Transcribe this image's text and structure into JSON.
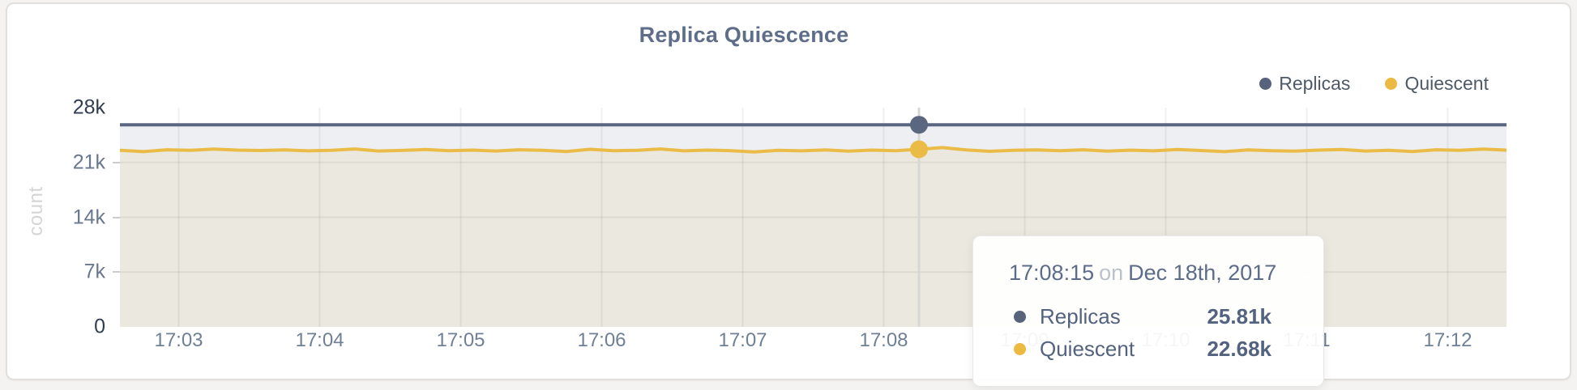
{
  "title": "Replica Quiescence",
  "y_axis_unit": "count",
  "legend": {
    "items": [
      {
        "label": "Replicas",
        "color": "#57637b"
      },
      {
        "label": "Quiescent",
        "color": "#ecba42"
      }
    ]
  },
  "tooltip": {
    "time": "17:08:15",
    "joiner": "on",
    "date": "Dec 18th, 2017",
    "rows": [
      {
        "label": "Replicas",
        "value": "25.81k",
        "color": "#57637b"
      },
      {
        "label": "Quiescent",
        "value": "22.68k",
        "color": "#ecba42"
      }
    ]
  },
  "colors": {
    "replicas_line": "#5b6780",
    "replicas_fill": "#edeff3",
    "quiescent_line": "#eabc47",
    "quiescent_fill": "#ebe8df",
    "crosshair": "#d7d7d5",
    "grid": "rgba(70,70,55,0.08)"
  },
  "chart_data": {
    "type": "area",
    "title": "Replica Quiescence",
    "xlabel": "",
    "ylabel": "count",
    "ylim": [
      0,
      28000
    ],
    "y_tick_values": [
      0,
      7000,
      14000,
      21000,
      28000
    ],
    "y_tick_labels": [
      "0",
      "7k",
      "14k",
      "21k",
      "28k"
    ],
    "x_start": "17:02:35",
    "x_end": "17:12:25",
    "x_step_seconds": 10,
    "x_tick_labels": [
      "17:03",
      "17:04",
      "17:05",
      "17:06",
      "17:07",
      "17:08",
      "17:09",
      "17:10",
      "17:11",
      "17:12"
    ],
    "legend_position": "top-right",
    "grid": true,
    "hover": {
      "index": 34,
      "time": "17:08:15",
      "date": "Dec 18th, 2017",
      "replicas": 25810,
      "quiescent": 22680
    },
    "series": [
      {
        "name": "Replicas",
        "color": "#5b6780",
        "fill": "#edeff3",
        "values": [
          25810,
          25810,
          25810,
          25810,
          25810,
          25810,
          25810,
          25810,
          25810,
          25810,
          25810,
          25810,
          25810,
          25810,
          25810,
          25810,
          25810,
          25810,
          25810,
          25810,
          25810,
          25810,
          25810,
          25810,
          25810,
          25810,
          25810,
          25810,
          25810,
          25810,
          25810,
          25810,
          25810,
          25810,
          25810,
          25810,
          25810,
          25810,
          25810,
          25810,
          25810,
          25810,
          25810,
          25810,
          25810,
          25810,
          25810,
          25810,
          25810,
          25810,
          25810,
          25810,
          25810,
          25810,
          25810,
          25810,
          25810,
          25810,
          25810,
          25810
        ]
      },
      {
        "name": "Quiescent",
        "color": "#eabc47",
        "fill": "#ebe8df",
        "values": [
          22560,
          22380,
          22620,
          22560,
          22700,
          22580,
          22520,
          22600,
          22480,
          22560,
          22720,
          22460,
          22530,
          22650,
          22500,
          22580,
          22460,
          22620,
          22550,
          22400,
          22680,
          22500,
          22560,
          22720,
          22480,
          22580,
          22500,
          22340,
          22560,
          22480,
          22600,
          22440,
          22580,
          22500,
          22680,
          22900,
          22600,
          22420,
          22550,
          22610,
          22500,
          22620,
          22450,
          22570,
          22480,
          22660,
          22520,
          22380,
          22600,
          22500,
          22440,
          22580,
          22650,
          22460,
          22560,
          22400,
          22620,
          22550,
          22700,
          22580
        ]
      }
    ]
  }
}
